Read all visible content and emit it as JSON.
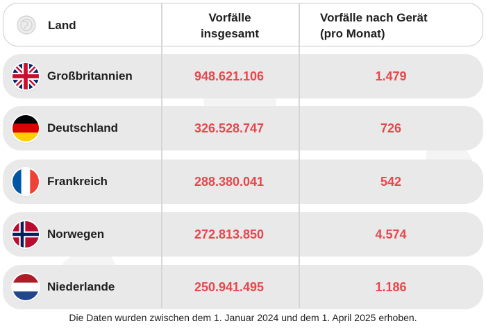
{
  "header": {
    "land": "Land",
    "total_line1": "Vorfälle",
    "total_line2": "insgesamt",
    "device_line1": "Vorfälle nach Gerät",
    "device_line2": "(pro Monat)",
    "icon": "globe-icon"
  },
  "rows": [
    {
      "country": "Großbritannien",
      "total": "948.621.106",
      "per_device": "1.479",
      "flag": "uk-flag-icon"
    },
    {
      "country": "Deutschland",
      "total": "326.528.747",
      "per_device": "726",
      "flag": "germany-flag-icon"
    },
    {
      "country": "Frankreich",
      "total": "288.380.041",
      "per_device": "542",
      "flag": "france-flag-icon"
    },
    {
      "country": "Norwegen",
      "total": "272.813.850",
      "per_device": "4.574",
      "flag": "norway-flag-icon"
    },
    {
      "country": "Niederlande",
      "total": "250.941.495",
      "per_device": "1.186",
      "flag": "netherlands-flag-icon"
    }
  ],
  "footnote": "Die Daten wurden zwischen dem 1. Januar 2024 und dem 1. April 2025 erhoben.",
  "colors": {
    "accent": "#e5484d",
    "row_bg": "#e9e9e9",
    "text": "#1f1f1f"
  }
}
